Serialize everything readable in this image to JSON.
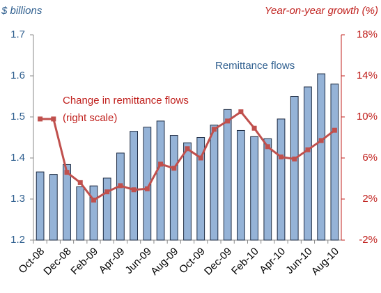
{
  "chart_data": {
    "type": "bar-line",
    "y_label": "$ billions",
    "y2_label": "Year-on-year growth (%)",
    "annotations": [
      "Remittance flows",
      "Change in remittance flows",
      "(right scale)"
    ],
    "categories": [
      "Oct-08",
      null,
      "Dec-08",
      null,
      "Feb-09",
      null,
      "Apr-09",
      null,
      "Jun-09",
      null,
      "Aug-09",
      null,
      "Oct-09",
      null,
      "Dec-09",
      null,
      "Feb-10",
      null,
      "Apr-10",
      null,
      "Jun-10",
      null,
      "Aug-10"
    ],
    "series": [
      {
        "name": "Remittance flows",
        "type": "bar",
        "color": "#95b3d7",
        "values": [
          1.366,
          1.36,
          1.384,
          1.33,
          1.332,
          1.351,
          1.412,
          1.465,
          1.475,
          1.49,
          1.455,
          1.437,
          1.45,
          1.48,
          1.518,
          1.467,
          1.452,
          1.447,
          1.495,
          1.55,
          1.573,
          1.605,
          1.58
        ]
      },
      {
        "name": "Change in remittance flows",
        "type": "line",
        "axis": "y2",
        "color": "#c0504d",
        "values": [
          9.8,
          9.8,
          4.6,
          3.6,
          1.9,
          2.7,
          3.3,
          2.9,
          3.0,
          5.4,
          5.0,
          6.9,
          6.0,
          8.8,
          9.6,
          10.5,
          8.9,
          7.1,
          6.1,
          5.9,
          6.8,
          7.7,
          8.7
        ]
      }
    ],
    "ylim": [
      1.2,
      1.7
    ],
    "yticks": [
      1.2,
      1.3,
      1.4,
      1.5,
      1.6,
      1.7
    ],
    "y2lim": [
      -2,
      18
    ],
    "y2ticks": [
      {
        "value": -2,
        "label": "-2%"
      },
      {
        "value": 2,
        "label": "2%"
      },
      {
        "value": 6,
        "label": "6%"
      },
      {
        "value": 10,
        "label": "10%"
      },
      {
        "value": 14,
        "label": "14%"
      },
      {
        "value": 18,
        "label": "18%"
      }
    ],
    "y_color": "#2f5f8f",
    "y2_color": "#c0201d"
  }
}
